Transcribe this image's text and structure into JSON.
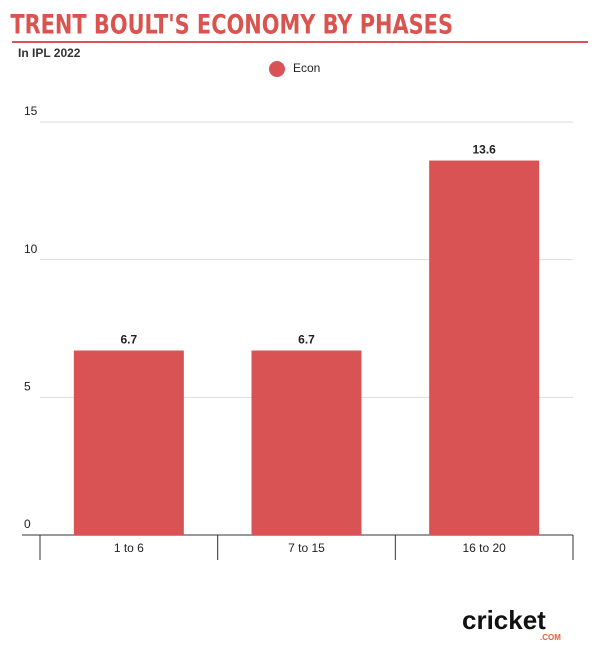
{
  "chart_data": {
    "type": "bar",
    "title": "TRENT BOULT'S ECONOMY BY PHASES",
    "subtitle": "In IPL 2022",
    "categories": [
      "1 to 6",
      "7 to 15",
      "16 to 20"
    ],
    "series": [
      {
        "name": "Econ",
        "color": "#d95254",
        "values": [
          6.7,
          6.7,
          13.6
        ]
      }
    ],
    "ylim": [
      0,
      15
    ],
    "yticks": [
      0,
      5,
      10,
      15
    ],
    "grid": true,
    "legend": "top"
  },
  "logo": {
    "name": "cricket",
    "domain": ".COM"
  }
}
